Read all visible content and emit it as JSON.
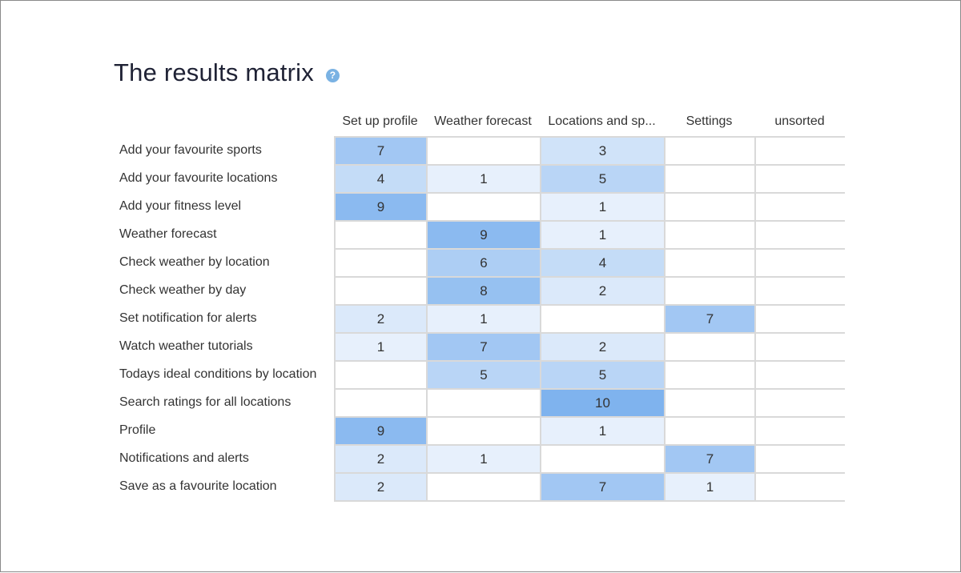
{
  "title": "The results matrix",
  "help_icon": "question-circle-icon",
  "chart_data": {
    "type": "heatmap",
    "columns": [
      "Set up profile",
      "Weather forecast",
      "Locations and sp...",
      "Settings",
      "unsorted"
    ],
    "rows": [
      "Add your favourite sports",
      "Add your favourite locations",
      "Add your fitness level",
      "Weather forecast",
      "Check weather by location",
      "Check weather by day",
      "Set notification for alerts",
      "Watch weather tutorials",
      "Todays ideal conditions by location",
      "Search ratings for all locations",
      "Profile",
      "Notifications and alerts",
      "Save as a favourite location"
    ],
    "values": [
      [
        7,
        null,
        3,
        null,
        null
      ],
      [
        4,
        1,
        5,
        null,
        null
      ],
      [
        9,
        null,
        1,
        null,
        null
      ],
      [
        null,
        9,
        1,
        null,
        null
      ],
      [
        null,
        6,
        4,
        null,
        null
      ],
      [
        null,
        8,
        2,
        null,
        null
      ],
      [
        2,
        1,
        null,
        7,
        null
      ],
      [
        1,
        7,
        2,
        null,
        null
      ],
      [
        null,
        5,
        5,
        null,
        null
      ],
      [
        null,
        null,
        10,
        null,
        null
      ],
      [
        9,
        null,
        1,
        null,
        null
      ],
      [
        2,
        1,
        null,
        7,
        null
      ],
      [
        2,
        null,
        7,
        1,
        null
      ]
    ],
    "max_value": 10,
    "color_scale": {
      "low": "#f2f7fd",
      "high": "#7fb3ee",
      "empty": "#ffffff"
    }
  }
}
